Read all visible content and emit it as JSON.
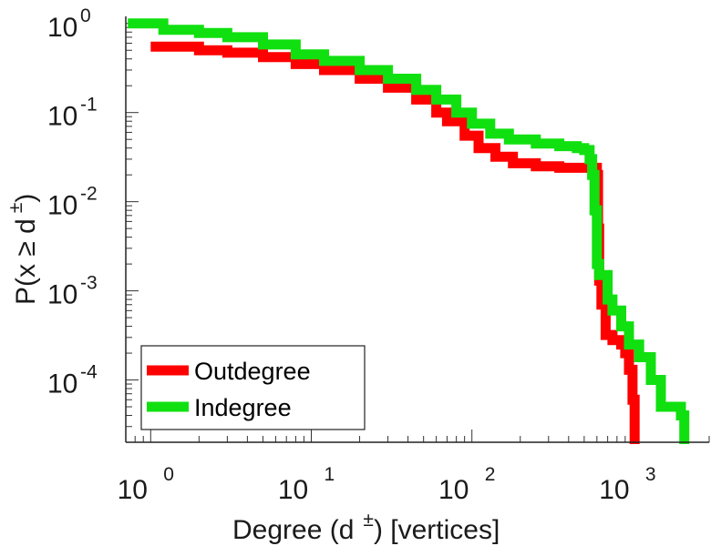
{
  "chart_data": {
    "type": "line",
    "xscale": "log",
    "yscale": "log",
    "xlabel_prefix": "Degree (d",
    "xlabel_sup": "±",
    "xlabel_suffix": ") [vertices]",
    "ylabel_prefix": "P(x ≥ d",
    "ylabel_sup": "±",
    "ylabel_suffix": ")",
    "xlim": [
      0.7,
      3000
    ],
    "ylim": [
      2e-05,
      1.2
    ],
    "x_ticks": [
      {
        "base": "10",
        "exp": "0",
        "value": 1
      },
      {
        "base": "10",
        "exp": "1",
        "value": 10
      },
      {
        "base": "10",
        "exp": "2",
        "value": 100
      },
      {
        "base": "10",
        "exp": "3",
        "value": 1000
      }
    ],
    "y_ticks": [
      {
        "base": "10",
        "exp": "0",
        "value": 1
      },
      {
        "base": "10",
        "exp": "-1",
        "value": 0.1
      },
      {
        "base": "10",
        "exp": "-2",
        "value": 0.01
      },
      {
        "base": "10",
        "exp": "-3",
        "value": 0.001
      },
      {
        "base": "10",
        "exp": "-4",
        "value": 0.0001
      }
    ],
    "legend_position": "bottom-left",
    "series": [
      {
        "name": "Outdegree",
        "color": "#ff0000",
        "points": [
          [
            1,
            0.55
          ],
          [
            2,
            0.5
          ],
          [
            3,
            0.47
          ],
          [
            5,
            0.42
          ],
          [
            8,
            0.35
          ],
          [
            12,
            0.3
          ],
          [
            20,
            0.24
          ],
          [
            30,
            0.19
          ],
          [
            45,
            0.14
          ],
          [
            60,
            0.1
          ],
          [
            70,
            0.08
          ],
          [
            90,
            0.055
          ],
          [
            110,
            0.04
          ],
          [
            140,
            0.032
          ],
          [
            180,
            0.027
          ],
          [
            250,
            0.025
          ],
          [
            350,
            0.024
          ],
          [
            500,
            0.024
          ],
          [
            580,
            0.024
          ],
          [
            600,
            0.02
          ],
          [
            610,
            0.005
          ],
          [
            620,
            0.0013
          ],
          [
            640,
            0.0007
          ],
          [
            680,
            0.00032
          ],
          [
            750,
            0.00028
          ],
          [
            850,
            0.00025
          ],
          [
            900,
            0.0002
          ],
          [
            950,
            0.00013
          ],
          [
            1000,
            6e-05
          ],
          [
            1030,
            3e-05
          ]
        ]
      },
      {
        "name": "Indegree",
        "color": "#10e010",
        "points": [
          [
            0.72,
            1.0
          ],
          [
            1,
            1.0
          ],
          [
            1.2,
            0.85
          ],
          [
            2,
            0.78
          ],
          [
            3,
            0.7
          ],
          [
            5,
            0.58
          ],
          [
            8,
            0.45
          ],
          [
            12,
            0.38
          ],
          [
            20,
            0.3
          ],
          [
            30,
            0.24
          ],
          [
            45,
            0.18
          ],
          [
            60,
            0.14
          ],
          [
            80,
            0.1
          ],
          [
            100,
            0.075
          ],
          [
            130,
            0.058
          ],
          [
            170,
            0.05
          ],
          [
            250,
            0.045
          ],
          [
            350,
            0.042
          ],
          [
            450,
            0.04
          ],
          [
            500,
            0.038
          ],
          [
            540,
            0.03
          ],
          [
            560,
            0.02
          ],
          [
            580,
            0.008
          ],
          [
            600,
            0.002
          ],
          [
            620,
            0.0015
          ],
          [
            700,
            0.0008
          ],
          [
            750,
            0.0006
          ],
          [
            850,
            0.0004
          ],
          [
            950,
            0.00025
          ],
          [
            1100,
            0.00018
          ],
          [
            1300,
            0.0001
          ],
          [
            1500,
            5e-05
          ],
          [
            1800,
            5e-05
          ],
          [
            2000,
            4e-05
          ],
          [
            2100,
            3e-05
          ]
        ]
      }
    ]
  }
}
